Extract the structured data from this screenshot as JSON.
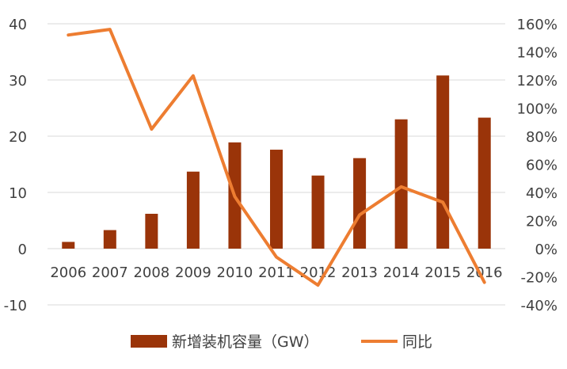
{
  "chart_data": {
    "type": "bar",
    "categories": [
      "2006",
      "2007",
      "2008",
      "2009",
      "2010",
      "2011",
      "2012",
      "2013",
      "2014",
      "2015",
      "2016"
    ],
    "series": [
      {
        "name": "新增装机容量（GW）",
        "type": "bar",
        "axis": "left",
        "values": [
          1.2,
          3.3,
          6.2,
          13.7,
          18.9,
          17.6,
          13.0,
          16.1,
          23.0,
          30.8,
          23.3
        ]
      },
      {
        "name": "同比",
        "type": "line",
        "axis": "right",
        "values": [
          152,
          156,
          85,
          123,
          37,
          -6,
          -26,
          24,
          44,
          33,
          -24
        ]
      }
    ],
    "y_left": {
      "min": -10,
      "max": 40,
      "ticks": [
        "-10",
        "0",
        "10",
        "20",
        "30",
        "40"
      ],
      "tick_values": [
        -10,
        0,
        10,
        20,
        30,
        40
      ]
    },
    "y_right": {
      "min": -40,
      "max": 160,
      "ticks": [
        "-40%",
        "-20%",
        "0%",
        "20%",
        "40%",
        "60%",
        "80%",
        "100%",
        "120%",
        "140%",
        "160%"
      ],
      "tick_values": [
        -40,
        -20,
        0,
        20,
        40,
        60,
        80,
        100,
        120,
        140,
        160
      ]
    },
    "grid": true,
    "legend_position": "bottom",
    "colors": {
      "bar": "#9A3409",
      "line": "#ED7D31",
      "grid": "#D9D9D9",
      "text": "#404040"
    }
  }
}
